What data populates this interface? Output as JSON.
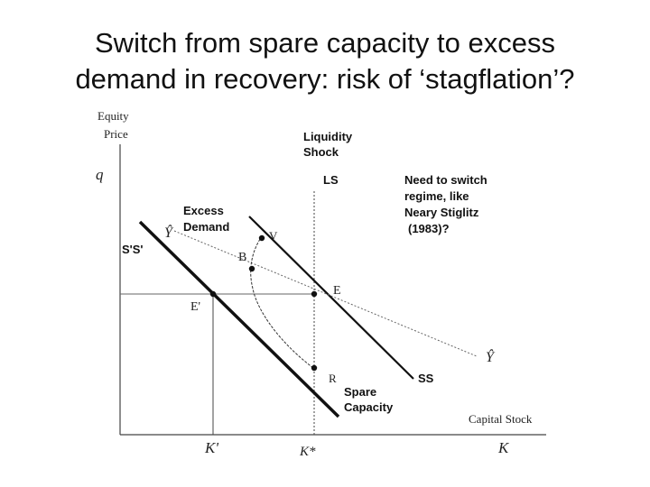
{
  "title": {
    "line1": "Switch from spare capacity to excess",
    "line2": "demand in recovery: risk of ‘stagflation’?"
  },
  "axes": {
    "y_label_line1": "Equity",
    "y_label_line2": "Price",
    "y_symbol": "q",
    "x_label": "Capital Stock",
    "x_symbol": "K",
    "x_tick_left": "K'",
    "x_tick_mid": "K*"
  },
  "annotations": {
    "liquidity_shock_line1": "Liquidity",
    "liquidity_shock_line2": "Shock",
    "ls": "LS",
    "regime_line1": "Need to switch",
    "regime_line2": "regime, like",
    "regime_line3": "Neary Stiglitz",
    "regime_line4": "(1983)?",
    "excess_demand_line1": "Excess",
    "excess_demand_line2": "Demand",
    "y_hat": "Ŷ",
    "s_prime": "S'S'",
    "v": "V",
    "b": "B",
    "e": "E",
    "e_prime": "E'",
    "y_hat_right": "Ŷ",
    "r": "R",
    "ss": "SS",
    "spare_line1": "Spare",
    "spare_line2": "Capacity"
  }
}
